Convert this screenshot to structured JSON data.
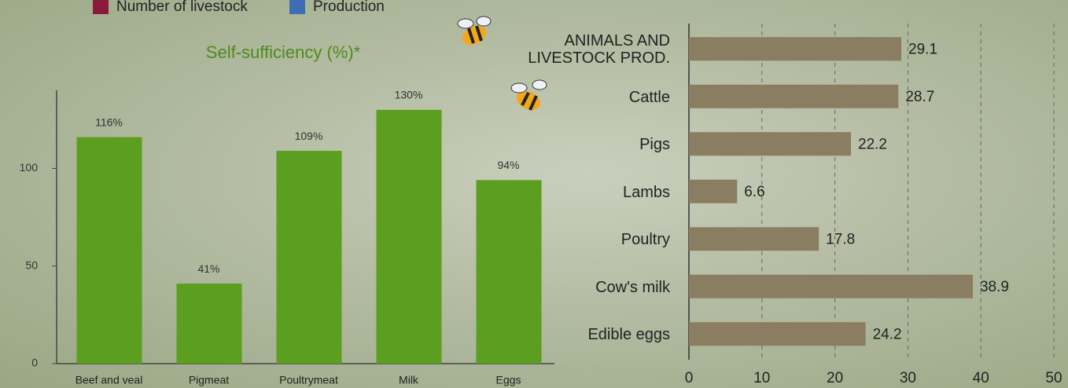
{
  "legend": [
    {
      "name": "Number of livestock",
      "color": "#8b1a3a"
    },
    {
      "name": "Production",
      "color": "#3d6eb4"
    }
  ],
  "chart_data": [
    {
      "type": "bar",
      "title": "Self-sufficiency (%)*",
      "categories": [
        "Beef and veal",
        "Pigmeat",
        "Poultrymeat",
        "Milk",
        "Eggs"
      ],
      "values": [
        116,
        41,
        109,
        130,
        94
      ],
      "value_labels": [
        "116%",
        "41%",
        "109%",
        "130%",
        "94%"
      ],
      "color": "#5c9e1f",
      "ylim": [
        0,
        140
      ],
      "yticks": [
        0,
        50,
        100
      ],
      "grid": false
    },
    {
      "type": "hbar",
      "categories": [
        "ANIMALS AND LIVESTOCK PROD.",
        "Cattle",
        "Pigs",
        "Lambs",
        "Poultry",
        "Cow's milk",
        "Edible eggs"
      ],
      "values": [
        29.1,
        28.7,
        22.2,
        6.6,
        17.8,
        38.9,
        24.2
      ],
      "color": "#8b7d62",
      "xlim": [
        0,
        50
      ],
      "xticks": [
        0,
        10,
        20,
        30,
        40,
        50
      ],
      "grid": true
    }
  ]
}
